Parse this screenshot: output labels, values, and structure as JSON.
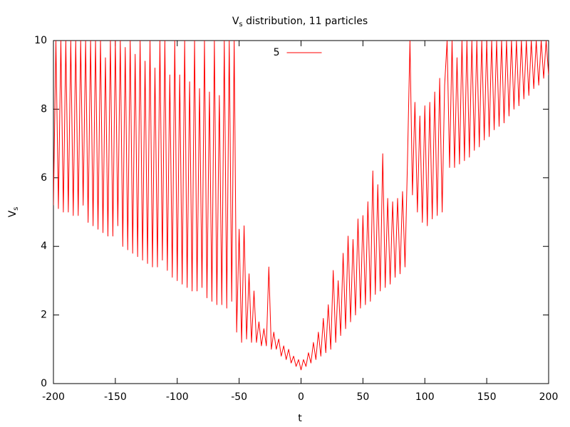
{
  "chart_data": {
    "type": "line",
    "title": [
      "V",
      "s",
      " distribution, 11 particles"
    ],
    "xlabel": "t",
    "ylabel": [
      "V",
      "s"
    ],
    "xlim": [
      -200,
      200
    ],
    "ylim": [
      0,
      10
    ],
    "xticks": [
      -200,
      -150,
      -100,
      -50,
      0,
      50,
      100,
      150,
      200
    ],
    "yticks": [
      0,
      2,
      4,
      6,
      8,
      10
    ],
    "grid": false,
    "legend": "top-center",
    "x": [
      -200,
      -198,
      -196,
      -194,
      -192,
      -190,
      -188,
      -186,
      -184,
      -182,
      -180,
      -178,
      -176,
      -174,
      -172,
      -170,
      -168,
      -166,
      -164,
      -162,
      -160,
      -158,
      -156,
      -154,
      -152,
      -150,
      -148,
      -146,
      -144,
      -142,
      -140,
      -138,
      -136,
      -134,
      -132,
      -130,
      -128,
      -126,
      -124,
      -122,
      -120,
      -118,
      -116,
      -114,
      -112,
      -110,
      -108,
      -106,
      -104,
      -102,
      -100,
      -98,
      -96,
      -94,
      -92,
      -90,
      -88,
      -86,
      -84,
      -82,
      -80,
      -78,
      -76,
      -74,
      -72,
      -70,
      -68,
      -66,
      -64,
      -62,
      -60,
      -58,
      -56,
      -54,
      -52,
      -50,
      -48,
      -46,
      -44,
      -42,
      -40,
      -38,
      -36,
      -34,
      -32,
      -30,
      -28,
      -26,
      -24,
      -22,
      -20,
      -18,
      -16,
      -14,
      -12,
      -10,
      -8,
      -6,
      -4,
      -2,
      0,
      2,
      4,
      6,
      8,
      10,
      12,
      14,
      16,
      18,
      20,
      22,
      24,
      26,
      28,
      30,
      32,
      34,
      36,
      38,
      40,
      42,
      44,
      46,
      48,
      50,
      52,
      54,
      56,
      58,
      60,
      62,
      64,
      66,
      68,
      70,
      72,
      74,
      76,
      78,
      80,
      82,
      84,
      86,
      88,
      90,
      92,
      94,
      96,
      98,
      100,
      102,
      104,
      106,
      108,
      110,
      112,
      114,
      116,
      118,
      120,
      122,
      124,
      126,
      128,
      130,
      132,
      134,
      136,
      138,
      140,
      142,
      144,
      146,
      148,
      150,
      152,
      154,
      156,
      158,
      160,
      162,
      164,
      166,
      168,
      170,
      172,
      174,
      176,
      178,
      180,
      182,
      184,
      186,
      188,
      190,
      192,
      194,
      196,
      198,
      200
    ],
    "series": [
      {
        "name": "5",
        "color": "#ff0000",
        "values": [
          5.2,
          10,
          5.1,
          10,
          5.0,
          10,
          5.0,
          10,
          4.9,
          10,
          4.9,
          10,
          5.2,
          10,
          4.7,
          10,
          4.6,
          10,
          4.5,
          10,
          4.4,
          9.5,
          4.3,
          10,
          4.3,
          10,
          4.6,
          10,
          4.0,
          9.8,
          3.9,
          10,
          3.8,
          9.6,
          3.7,
          10,
          3.6,
          9.4,
          3.5,
          10,
          3.4,
          9.2,
          3.4,
          10,
          3.6,
          10,
          3.3,
          9.0,
          3.1,
          10,
          3.0,
          9.0,
          2.9,
          10,
          2.8,
          8.8,
          2.7,
          10,
          2.7,
          8.6,
          2.8,
          10,
          2.5,
          8.5,
          2.4,
          10,
          2.3,
          8.4,
          2.3,
          10,
          2.2,
          10,
          2.4,
          10,
          1.5,
          4.5,
          1.2,
          4.6,
          1.3,
          3.2,
          1.2,
          2.7,
          1.2,
          1.8,
          1.1,
          1.6,
          1.1,
          3.4,
          1.0,
          1.5,
          1.0,
          1.3,
          0.8,
          1.1,
          0.7,
          1.0,
          0.6,
          0.8,
          0.5,
          0.7,
          0.4,
          0.7,
          0.5,
          0.9,
          0.6,
          1.2,
          0.7,
          1.5,
          0.8,
          1.9,
          0.9,
          2.3,
          1.0,
          3.3,
          1.2,
          3.0,
          1.4,
          3.8,
          1.6,
          4.3,
          1.8,
          4.2,
          2.0,
          4.8,
          2.2,
          4.9,
          2.3,
          5.3,
          2.4,
          6.2,
          2.6,
          5.8,
          2.7,
          6.7,
          2.8,
          5.4,
          2.9,
          5.3,
          3.1,
          5.4,
          3.2,
          5.6,
          3.4,
          6.5,
          10,
          5.5,
          8.2,
          5.0,
          7.8,
          4.7,
          8.1,
          4.6,
          8.2,
          4.8,
          8.5,
          4.9,
          8.9,
          5.0,
          8.7,
          10,
          6.3,
          10,
          6.3,
          9.5,
          6.4,
          10,
          6.5,
          10,
          6.6,
          10,
          6.8,
          10,
          6.9,
          10,
          7.1,
          10,
          7.2,
          10,
          7.4,
          10,
          7.5,
          10,
          7.6,
          10,
          7.8,
          10,
          8.0,
          10,
          8.1,
          10,
          8.3,
          10,
          8.4,
          10,
          8.6,
          10,
          8.7,
          10,
          8.9,
          10,
          9.0
        ]
      }
    ]
  }
}
